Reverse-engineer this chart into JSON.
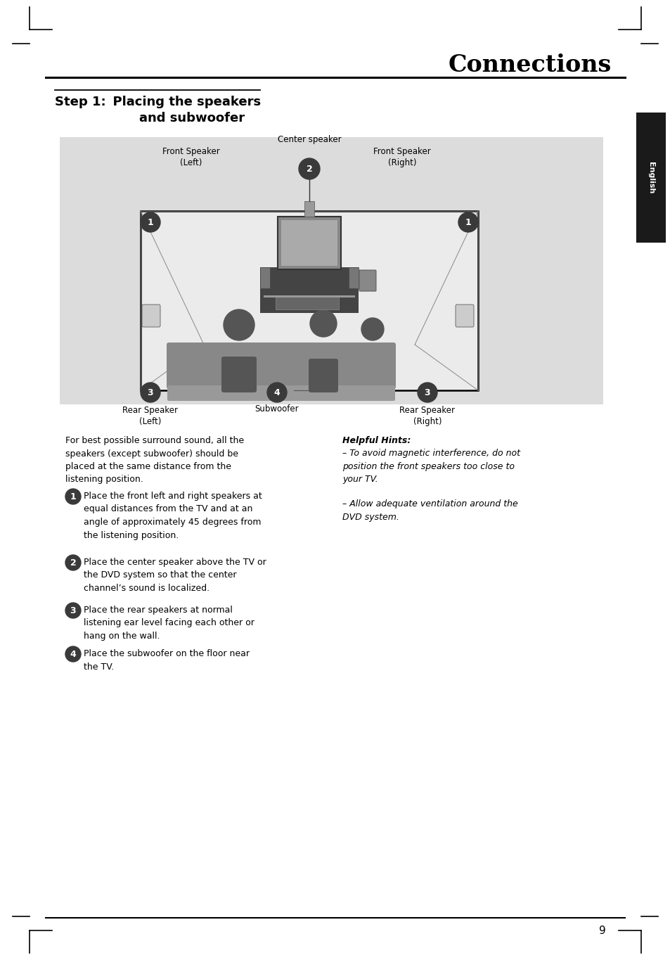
{
  "page_title": "Connections",
  "bg_color": "#ffffff",
  "diagram_bg": "#dcdcdc",
  "sidebar_bg": "#1a1a1a",
  "sidebar_text": "English",
  "body_text_left": "For best possible surround sound, all the\nspeakers (except subwoofer) should be\nplaced at the same distance from the\nlistening position.",
  "bullet1": "Place the front left and right speakers at\nequal distances from the TV and at an\nangle of approximately 45 degrees from\nthe listening position.",
  "bullet2": "Place the center speaker above the TV or\nthe DVD system so that the center\nchannel’s sound is localized.",
  "bullet3": "Place the rear speakers at normal\nlistening ear level facing each other or\nhang on the wall.",
  "bullet4": "Place the subwoofer on the floor near\nthe TV.",
  "hints_title": "Helpful Hints:",
  "hint1": "– To avoid magnetic interference, do not\nposition the front speakers too close to\nyour TV.",
  "hint2": "– Allow adequate ventilation around the\nDVD system.",
  "label_center": "Center speaker",
  "label_front_left": "Front Speaker\n(Left)",
  "label_front_right": "Front Speaker\n(Right)",
  "label_rear_left": "Rear Speaker\n(Left)",
  "label_rear_right": "Rear Speaker\n(Right)",
  "label_subwoofer": "Subwoofer",
  "page_number": "9",
  "corner_mark_color": "#000000"
}
